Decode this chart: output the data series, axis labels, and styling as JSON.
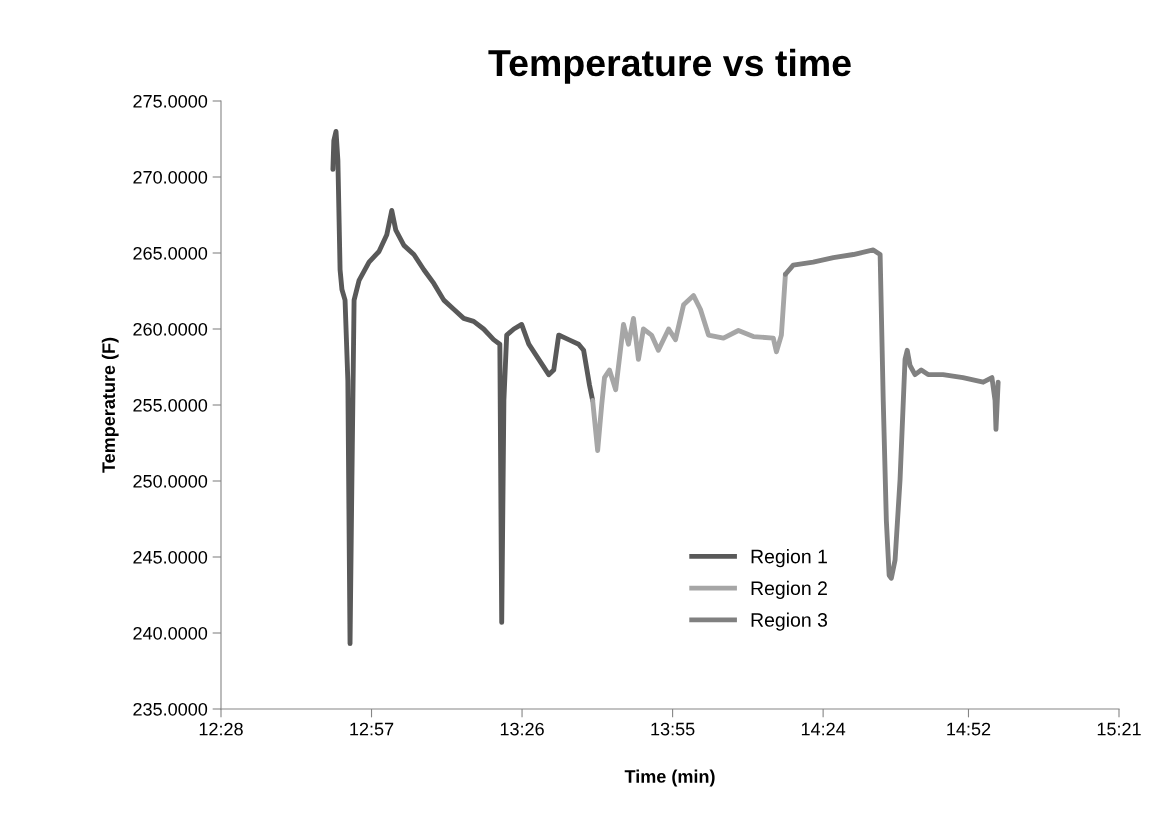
{
  "chart_data": {
    "type": "line",
    "title": "Temperature vs time",
    "xlabel": "Time (min)",
    "ylabel": "Temperature (F)",
    "xlim": [
      12.4667,
      15.35
    ],
    "ylim": [
      235,
      275
    ],
    "xticks": [
      {
        "value": 12.4667,
        "label": "12:28"
      },
      {
        "value": 12.95,
        "label": "12:57"
      },
      {
        "value": 13.4333,
        "label": "13:26"
      },
      {
        "value": 13.9167,
        "label": "13:55"
      },
      {
        "value": 14.4,
        "label": "14:24"
      },
      {
        "value": 14.8667,
        "label": "14:52"
      },
      {
        "value": 15.35,
        "label": "15:21"
      }
    ],
    "yticks": [
      {
        "value": 235,
        "label": "235.0000"
      },
      {
        "value": 240,
        "label": "240.0000"
      },
      {
        "value": 245,
        "label": "245.0000"
      },
      {
        "value": 250,
        "label": "250.0000"
      },
      {
        "value": 255,
        "label": "255.0000"
      },
      {
        "value": 260,
        "label": "260.0000"
      },
      {
        "value": 265,
        "label": "265.0000"
      },
      {
        "value": 270,
        "label": "270.0000"
      },
      {
        "value": 275,
        "label": "275.0000"
      }
    ],
    "grid": false,
    "legend": "bottom",
    "marker": "none",
    "line_style": "solid",
    "series": [
      {
        "name": "Region 1",
        "color": "#595959",
        "x": [
          12.826,
          12.829,
          12.836,
          12.842,
          12.849,
          12.855,
          12.865,
          12.874,
          12.881,
          12.887,
          12.894,
          12.91,
          12.942,
          12.974,
          12.999,
          13.015,
          13.028,
          13.054,
          13.086,
          13.118,
          13.15,
          13.182,
          13.214,
          13.246,
          13.278,
          13.31,
          13.342,
          13.362,
          13.368,
          13.375,
          13.384,
          13.407,
          13.432,
          13.455,
          13.487,
          13.519,
          13.535,
          13.551,
          13.583,
          13.615,
          13.631,
          13.65,
          13.66
        ],
        "values": [
          270.5,
          272.4,
          273.0,
          271.1,
          263.9,
          262.6,
          261.9,
          256.6,
          239.3,
          250.1,
          261.9,
          263.2,
          264.4,
          265.1,
          266.2,
          267.8,
          266.5,
          265.5,
          264.9,
          263.9,
          263.0,
          261.9,
          261.3,
          260.7,
          260.5,
          260.0,
          259.3,
          259.0,
          240.7,
          255.3,
          259.6,
          260.0,
          260.3,
          259.0,
          258.0,
          257.0,
          257.3,
          259.6,
          259.3,
          259.0,
          258.6,
          256.3,
          255.3
        ]
      },
      {
        "name": "Region 2",
        "color": "#a6a6a6",
        "x": [
          13.66,
          13.676,
          13.689,
          13.698,
          13.714,
          13.734,
          13.759,
          13.775,
          13.791,
          13.807,
          13.823,
          13.849,
          13.871,
          13.904,
          13.926,
          13.952,
          13.984,
          14.006,
          14.032,
          14.08,
          14.128,
          14.176,
          14.24,
          14.25,
          14.266,
          14.279
        ],
        "values": [
          255.3,
          252.0,
          255.0,
          256.8,
          257.3,
          256.0,
          260.3,
          259.0,
          260.7,
          258.0,
          260.0,
          259.6,
          258.6,
          260.0,
          259.3,
          261.6,
          262.2,
          261.3,
          259.6,
          259.4,
          259.9,
          259.5,
          259.4,
          258.5,
          259.6,
          263.6
        ]
      },
      {
        "name": "Region 3",
        "color": "#808080",
        "x": [
          14.279,
          14.304,
          14.368,
          14.433,
          14.497,
          14.561,
          14.583,
          14.593,
          14.603,
          14.612,
          14.619,
          14.631,
          14.647,
          14.663,
          14.67,
          14.679,
          14.695,
          14.715,
          14.737,
          14.785,
          14.849,
          14.914,
          14.942,
          14.952,
          14.955,
          14.962
        ],
        "values": [
          263.6,
          264.2,
          264.4,
          264.7,
          264.9,
          265.2,
          264.9,
          255.3,
          247.4,
          243.8,
          243.6,
          244.8,
          250.1,
          258.0,
          258.6,
          257.6,
          257.0,
          257.3,
          257.0,
          257.0,
          256.8,
          256.5,
          256.8,
          255.3,
          253.4,
          256.5
        ]
      }
    ]
  }
}
